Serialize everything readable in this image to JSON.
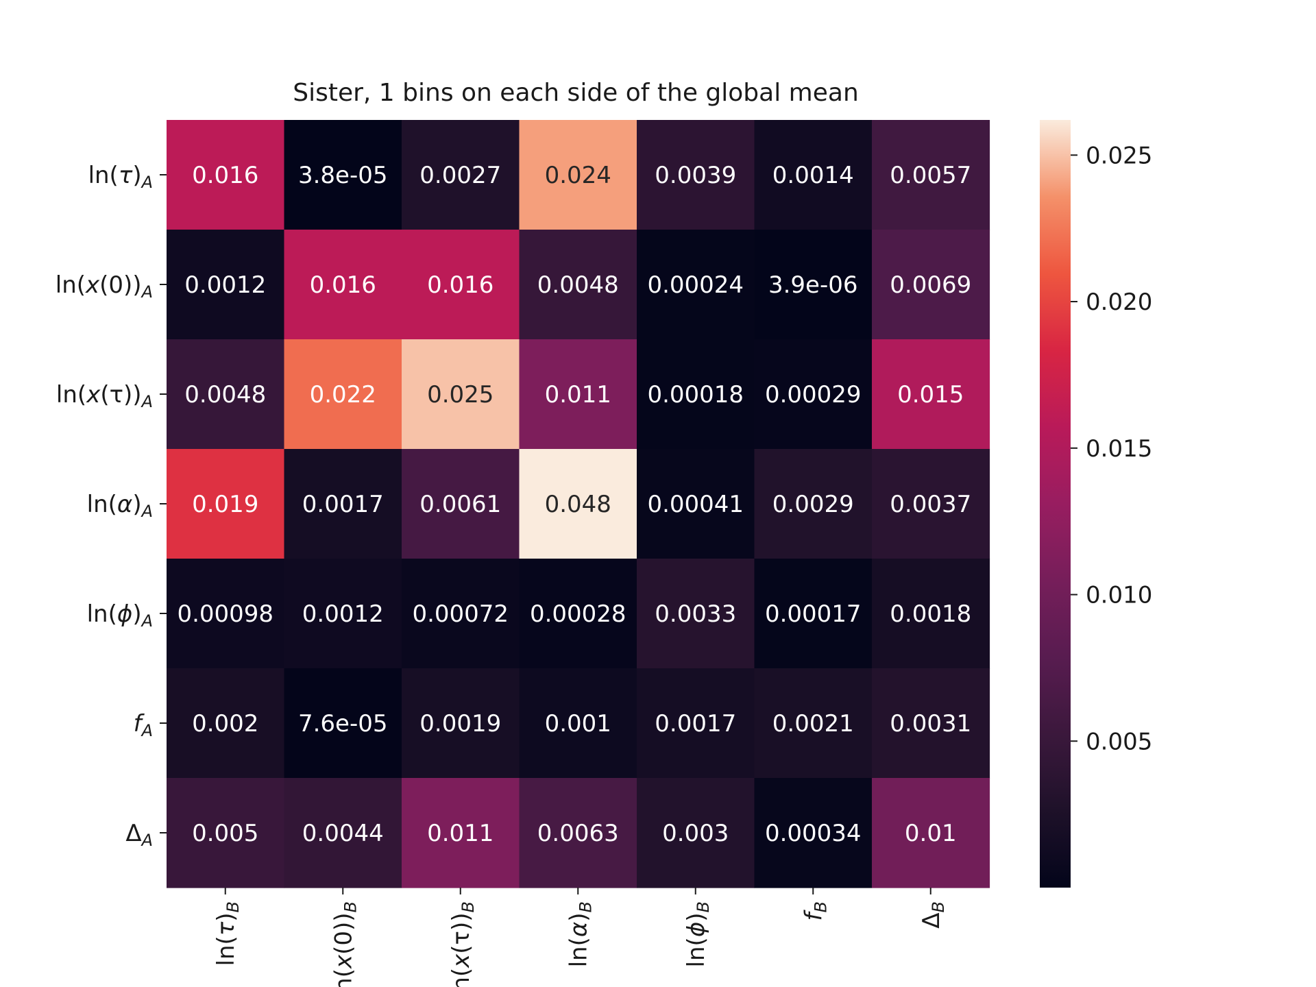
{
  "chart_data": {
    "type": "heatmap",
    "title": "Sister, 1 bins on each side of the global mean",
    "row_labels": [
      {
        "pre": "ln(",
        "var": "τ",
        "post": ")",
        "sub": "A"
      },
      {
        "pre": "ln(",
        "var": "x",
        "post": "(0))",
        "sub": "A"
      },
      {
        "pre": "ln(",
        "var": "x",
        "post": "(τ))",
        "sub": "A"
      },
      {
        "pre": "ln(",
        "var": "α",
        "post": ")",
        "sub": "A"
      },
      {
        "pre": "ln(",
        "var": "ϕ",
        "post": ")",
        "sub": "A"
      },
      {
        "pre": "",
        "var": "f",
        "post": "",
        "sub": "A"
      },
      {
        "pre": "Δ",
        "var": "",
        "post": "",
        "sub": "A"
      }
    ],
    "col_labels": [
      {
        "pre": "ln(",
        "var": "τ",
        "post": ")",
        "sub": "B"
      },
      {
        "pre": "ln(",
        "var": "x",
        "post": "(0))",
        "sub": "B"
      },
      {
        "pre": "ln(",
        "var": "x",
        "post": "(τ))",
        "sub": "B"
      },
      {
        "pre": "ln(",
        "var": "α",
        "post": ")",
        "sub": "B"
      },
      {
        "pre": "ln(",
        "var": "ϕ",
        "post": ")",
        "sub": "B"
      },
      {
        "pre": "",
        "var": "f",
        "post": "",
        "sub": "B"
      },
      {
        "pre": "Δ",
        "var": "",
        "post": "",
        "sub": "B"
      }
    ],
    "values": [
      [
        0.016,
        3.8e-05,
        0.0027,
        0.024,
        0.0039,
        0.0014,
        0.0057
      ],
      [
        0.0012,
        0.016,
        0.016,
        0.0048,
        0.00024,
        3.9e-06,
        0.0069
      ],
      [
        0.0048,
        0.022,
        0.025,
        0.011,
        0.00018,
        0.00029,
        0.015
      ],
      [
        0.019,
        0.0017,
        0.0061,
        0.048,
        0.00041,
        0.0029,
        0.0037
      ],
      [
        0.00098,
        0.0012,
        0.00072,
        0.00028,
        0.0033,
        0.00017,
        0.0018
      ],
      [
        0.002,
        7.6e-05,
        0.0019,
        0.001,
        0.0017,
        0.0021,
        0.0031
      ],
      [
        0.005,
        0.0044,
        0.011,
        0.0063,
        0.003,
        0.00034,
        0.01
      ]
    ],
    "display_labels": [
      [
        "0.016",
        "3.8e-05",
        "0.0027",
        "0.024",
        "0.0039",
        "0.0014",
        "0.0057"
      ],
      [
        "0.0012",
        "0.016",
        "0.016",
        "0.0048",
        "0.00024",
        "3.9e-06",
        "0.0069"
      ],
      [
        "0.0048",
        "0.022",
        "0.025",
        "0.011",
        "0.00018",
        "0.00029",
        "0.015"
      ],
      [
        "0.019",
        "0.0017",
        "0.0061",
        "0.048",
        "0.00041",
        "0.0029",
        "0.0037"
      ],
      [
        "0.00098",
        "0.0012",
        "0.00072",
        "0.00028",
        "0.0033",
        "0.00017",
        "0.0018"
      ],
      [
        "0.002",
        "7.6e-05",
        "0.0019",
        "0.001",
        "0.0017",
        "0.0021",
        "0.0031"
      ],
      [
        "0.005",
        "0.0044",
        "0.011",
        "0.0063",
        "0.003",
        "0.00034",
        "0.01"
      ]
    ],
    "colormap": "rocket",
    "color_range": [
      0.0,
      0.0262
    ],
    "colorbar_ticks": [
      0.005,
      0.01,
      0.015,
      0.02,
      0.025
    ],
    "colorbar_tick_labels": [
      "0.005",
      "0.010",
      "0.015",
      "0.020",
      "0.025"
    ],
    "grid": false
  }
}
